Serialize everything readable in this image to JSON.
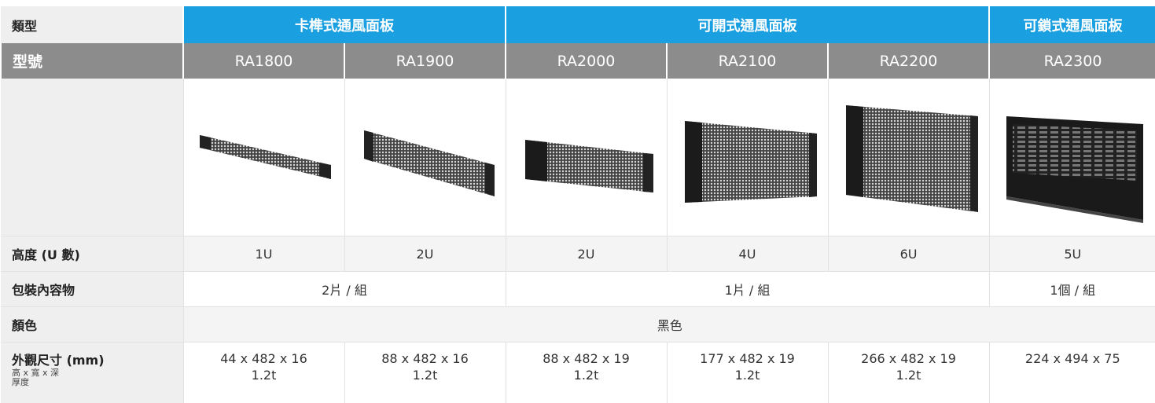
{
  "header": {
    "type_label": "類型",
    "groups": [
      "卡榫式通風面板",
      "可開式通風面板",
      "可鎖式通風面板"
    ],
    "model_label": "型號",
    "models": [
      "RA1800",
      "RA1900",
      "RA2000",
      "RA2100",
      "RA2200",
      "RA2300"
    ]
  },
  "rows": [
    {
      "label": "高度 (U 數)",
      "cells": [
        "1U",
        "2U",
        "2U",
        "4U",
        "6U",
        "5U"
      ]
    },
    {
      "label": "包裝內容物",
      "cells": [
        "2片 / 組",
        "1片 / 組",
        "1個 / 組"
      ]
    },
    {
      "label": "顏色",
      "cells": [
        "黑色"
      ]
    },
    {
      "label": "外觀尺寸 (mm)",
      "sublabels": [
        "高 x 寬 x 深",
        "厚度"
      ],
      "cells": [
        [
          "44 x 482 x 16",
          "1.2t"
        ],
        [
          "88 x 482 x 16",
          "1.2t"
        ],
        [
          "88 x 482 x 19",
          "1.2t"
        ],
        [
          "177 x 482 x 19",
          "1.2t"
        ],
        [
          "266 x 482 x 19",
          "1.2t"
        ],
        [
          "224 x 494 x 75"
        ]
      ]
    }
  ]
}
